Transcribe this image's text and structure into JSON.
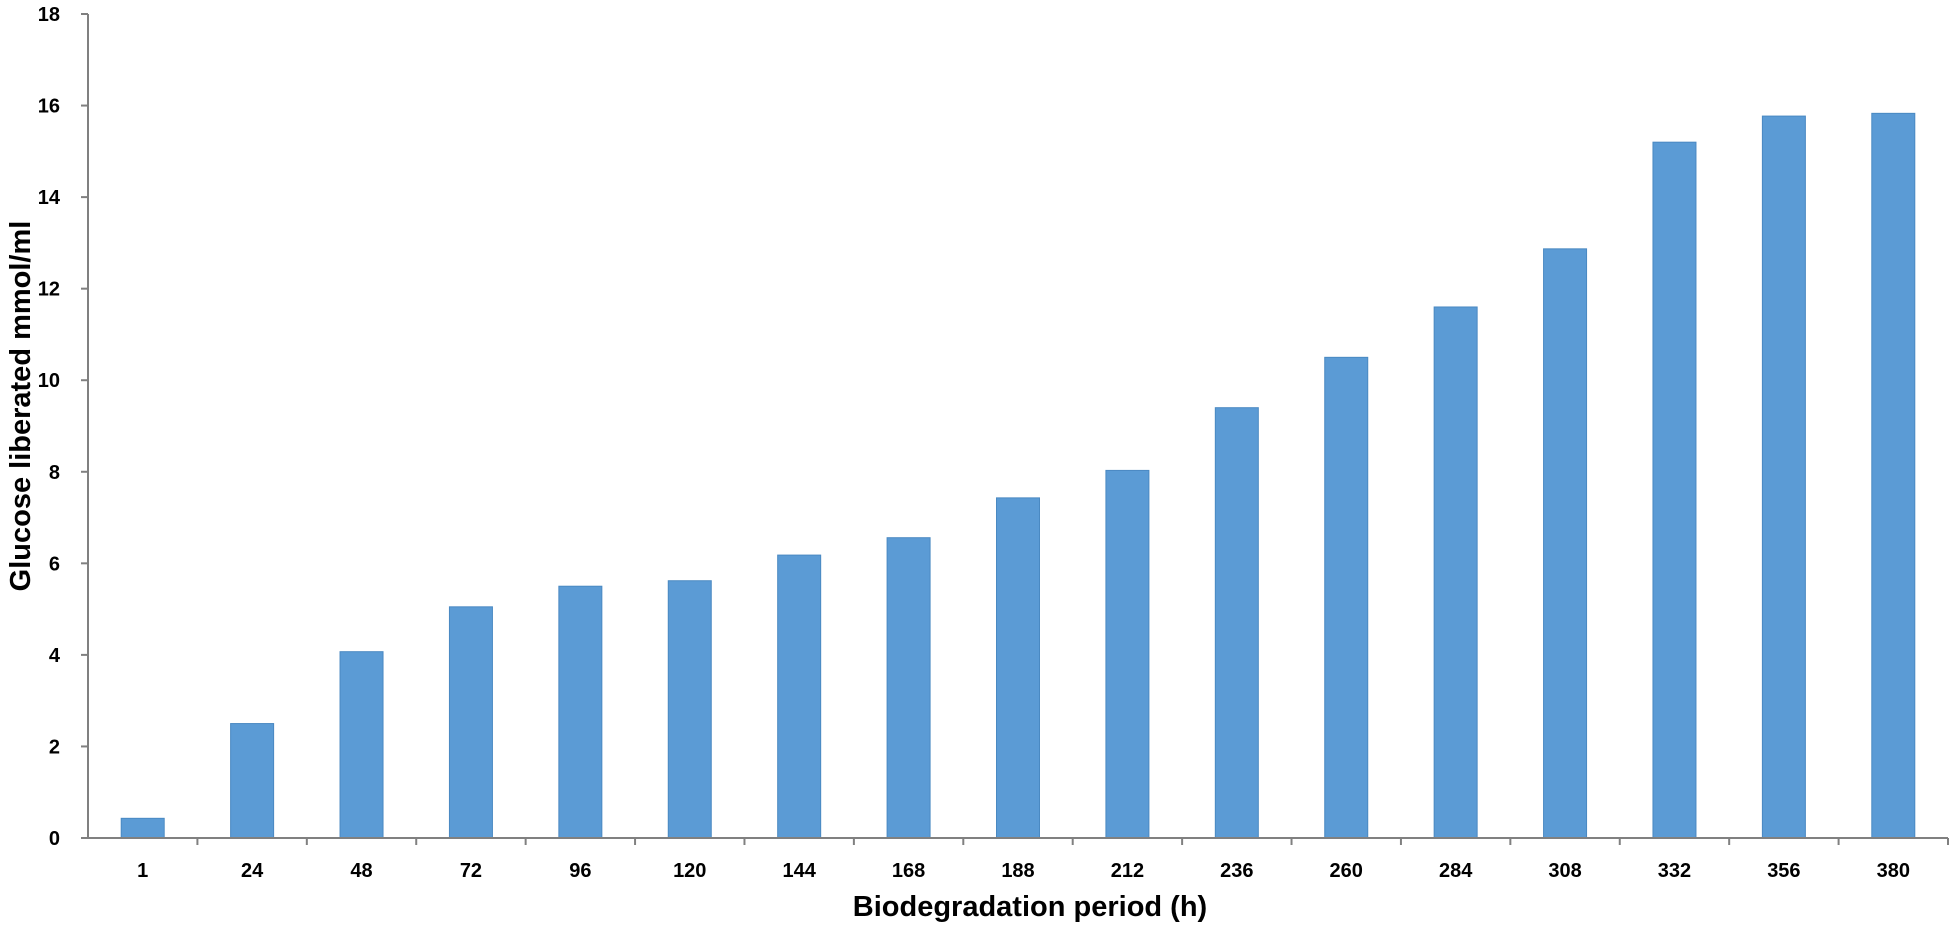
{
  "chart_data": {
    "type": "bar",
    "categories": [
      "1",
      "24",
      "48",
      "72",
      "96",
      "120",
      "144",
      "168",
      "188",
      "212",
      "236",
      "260",
      "284",
      "308",
      "332",
      "356",
      "380"
    ],
    "values": [
      0.43,
      2.5,
      4.07,
      5.05,
      5.5,
      5.62,
      6.18,
      6.56,
      7.43,
      8.03,
      9.4,
      10.5,
      11.6,
      12.87,
      15.2,
      15.77,
      15.83
    ],
    "title": "",
    "xlabel": "Biodegradation period (h)",
    "ylabel": "Glucose liberated mmol/ml",
    "ylim": [
      0,
      18
    ],
    "yticks": [
      0,
      2,
      4,
      6,
      8,
      10,
      12,
      14,
      16,
      18
    ],
    "grid": false,
    "legend": "none",
    "bar_color": "#5b9bd5",
    "bar_edge_color": "#4a89c2",
    "axis_color": "#808080"
  }
}
